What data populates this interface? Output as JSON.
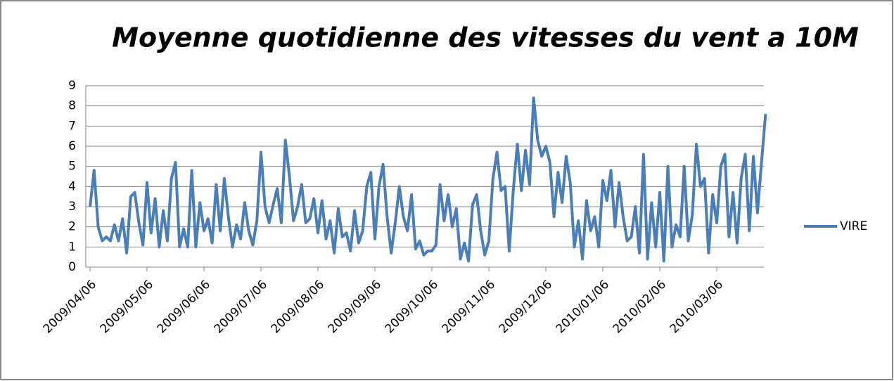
{
  "chart_data": {
    "type": "line",
    "title": "Moyenne quotidienne des vitesses du vent a 10M",
    "categories": [
      "2009/04/06",
      null,
      null,
      null,
      null,
      null,
      null,
      null,
      null,
      null,
      null,
      null,
      null,
      null,
      "2009/05/06",
      null,
      null,
      null,
      null,
      null,
      null,
      null,
      null,
      null,
      null,
      null,
      null,
      null,
      "2009/06/06",
      null,
      null,
      null,
      null,
      null,
      null,
      null,
      null,
      null,
      null,
      null,
      null,
      null,
      "2009/07/06",
      null,
      null,
      null,
      null,
      null,
      null,
      null,
      null,
      null,
      null,
      null,
      null,
      null,
      "2009/08/06",
      null,
      null,
      null,
      null,
      null,
      null,
      null,
      null,
      null,
      null,
      null,
      null,
      null,
      "2009/09/06",
      null,
      null,
      null,
      null,
      null,
      null,
      null,
      null,
      null,
      null,
      null,
      null,
      null,
      "2009/10/06",
      null,
      null,
      null,
      null,
      null,
      null,
      null,
      null,
      null,
      null,
      null,
      null,
      null,
      "2009/11/06",
      null,
      null,
      null,
      null,
      null,
      null,
      null,
      null,
      null,
      null,
      null,
      null,
      null,
      "2009/12/06",
      null,
      null,
      null,
      null,
      null,
      null,
      null,
      null,
      null,
      null,
      null,
      null,
      null,
      "2010/01/06",
      null,
      null,
      null,
      null,
      null,
      null,
      null,
      null,
      null,
      null,
      null,
      null,
      null,
      "2010/02/06",
      null,
      null,
      null,
      null,
      null,
      null,
      null,
      null,
      null,
      null,
      null,
      null,
      null,
      "2010/03/06",
      null,
      null,
      null,
      null,
      null,
      null,
      null,
      null,
      null,
      null,
      null,
      null
    ],
    "series": [
      {
        "name": "VIRE",
        "color": "#4a7ebb",
        "values": [
          3.0,
          4.8,
          2.0,
          1.3,
          1.5,
          1.3,
          2.1,
          1.3,
          2.4,
          0.7,
          3.5,
          3.7,
          2.2,
          1.1,
          4.2,
          1.7,
          3.4,
          1.0,
          2.8,
          1.3,
          4.4,
          5.2,
          1.0,
          1.9,
          1.0,
          4.8,
          1.0,
          3.2,
          1.8,
          2.4,
          1.2,
          4.1,
          1.8,
          4.4,
          2.5,
          1.0,
          2.1,
          1.4,
          3.2,
          1.8,
          1.1,
          2.3,
          5.7,
          3.0,
          2.2,
          3.1,
          3.9,
          2.2,
          6.3,
          4.5,
          2.3,
          3.0,
          4.1,
          2.2,
          2.4,
          3.4,
          1.7,
          3.3,
          1.4,
          2.3,
          0.7,
          2.9,
          1.5,
          1.7,
          0.8,
          2.8,
          1.2,
          1.8,
          4.0,
          4.7,
          1.4,
          4.0,
          5.1,
          2.5,
          0.7,
          2.2,
          4.0,
          2.5,
          1.8,
          3.6,
          0.9,
          1.3,
          0.6,
          0.8,
          0.8,
          1.1,
          4.1,
          2.3,
          3.6,
          2.0,
          2.9,
          0.4,
          1.2,
          0.3,
          3.1,
          3.6,
          1.8,
          0.6,
          1.3,
          4.4,
          5.7,
          3.8,
          4.0,
          0.8,
          3.8,
          6.1,
          3.8,
          5.8,
          4.1,
          8.4,
          6.3,
          5.5,
          6.0,
          5.2,
          2.5,
          4.7,
          3.2,
          5.5,
          4.2,
          1.0,
          2.3,
          0.4,
          3.3,
          1.8,
          2.5,
          1.0,
          4.3,
          3.3,
          4.8,
          2.0,
          4.2,
          2.5,
          1.3,
          1.5,
          3.0,
          0.7,
          5.6,
          0.4,
          3.2,
          1.0,
          3.7,
          0.3,
          5.0,
          1.0,
          2.1,
          1.5,
          5.0,
          1.3,
          2.6,
          6.1,
          4.0,
          4.4,
          0.7,
          3.6,
          2.2,
          5.0,
          5.6,
          1.5,
          3.7,
          1.2,
          4.4,
          5.6,
          1.8,
          5.5,
          2.7,
          5.2,
          7.6
        ]
      }
    ],
    "ylim": [
      0,
      9
    ],
    "yticks": [
      0,
      1,
      2,
      3,
      4,
      5,
      6,
      7,
      8,
      9
    ],
    "grid": true,
    "legend": "right"
  }
}
